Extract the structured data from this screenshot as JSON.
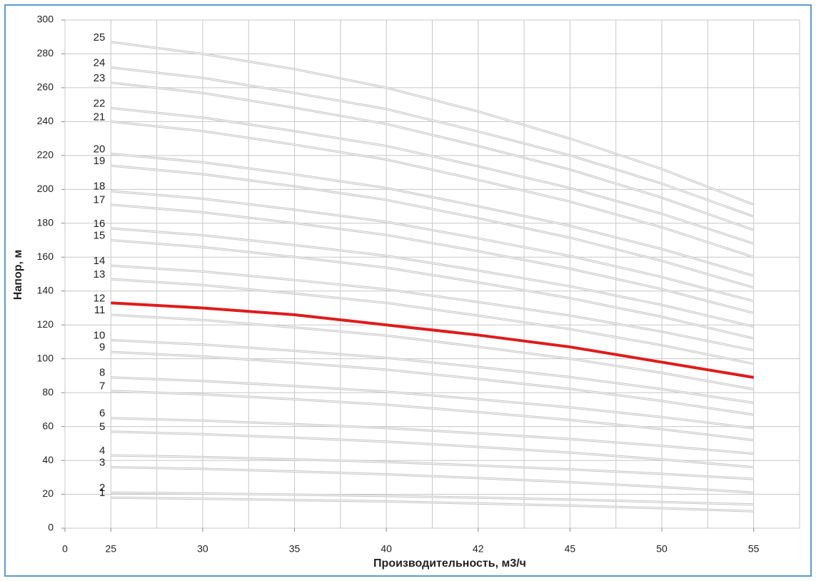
{
  "chart_data": {
    "type": "line",
    "xlabel": "Производительность, м3/ч",
    "ylabel": "Напор, м",
    "categories": [
      "0",
      "25",
      "30",
      "35",
      "40",
      "42",
      "45",
      "50",
      "55"
    ],
    "ylim": [
      0,
      300
    ],
    "yticks": [
      0,
      20,
      40,
      60,
      80,
      100,
      120,
      140,
      160,
      180,
      200,
      220,
      240,
      260,
      280,
      300
    ],
    "grid": true,
    "series": [
      {
        "name": "1",
        "color": "#c4c4c4",
        "values": [
          null,
          18,
          17.4,
          16.6,
          15.8,
          14.6,
          13.3,
          11.8,
          10
        ]
      },
      {
        "name": "2",
        "color": "#c4c4c4",
        "values": [
          null,
          21,
          20.5,
          19.8,
          19,
          18,
          16.9,
          15.5,
          14
        ]
      },
      {
        "name": "3",
        "color": "#c4c4c4",
        "values": [
          null,
          36,
          35,
          33.5,
          31.8,
          29.6,
          27.2,
          24.3,
          21
        ]
      },
      {
        "name": "4",
        "color": "#c4c4c4",
        "values": [
          null,
          43,
          42,
          40.6,
          39.1,
          37,
          34.7,
          32.1,
          29
        ]
      },
      {
        "name": "5",
        "color": "#c4c4c4",
        "values": [
          null,
          57,
          55.5,
          53.4,
          51.1,
          48,
          44.6,
          40.6,
          36
        ]
      },
      {
        "name": "6",
        "color": "#c4c4c4",
        "values": [
          null,
          65,
          63.5,
          61.4,
          59.1,
          56,
          52.6,
          48.6,
          44
        ]
      },
      {
        "name": "7",
        "color": "#c4c4c4",
        "values": [
          null,
          81,
          79,
          76.1,
          72.9,
          68.5,
          63.9,
          58.4,
          52
        ]
      },
      {
        "name": "8",
        "color": "#c4c4c4",
        "values": [
          null,
          89,
          86.9,
          83.9,
          80.6,
          76.1,
          71.3,
          65.6,
          59
        ]
      },
      {
        "name": "9",
        "color": "#c4c4c4",
        "values": [
          null,
          104,
          101.4,
          97.7,
          93.6,
          88.1,
          82.2,
          75.1,
          67
        ]
      },
      {
        "name": "10",
        "color": "#c4c4c4",
        "values": [
          null,
          111,
          108.4,
          104.7,
          100.6,
          95.1,
          89.2,
          82.1,
          74
        ]
      },
      {
        "name": "11",
        "color": "#c4c4c4",
        "values": [
          null,
          126,
          122.9,
          118.5,
          113.7,
          107.1,
          100,
          91.7,
          82
        ]
      },
      {
        "name": "12",
        "color": "#e01b1b",
        "values": [
          null,
          133,
          130,
          126,
          120,
          114,
          107,
          98,
          89
        ]
      },
      {
        "name": "13",
        "color": "#c4c4c4",
        "values": [
          null,
          147,
          143.5,
          138.5,
          133,
          125.5,
          117.5,
          108,
          97
        ]
      },
      {
        "name": "14",
        "color": "#c4c4c4",
        "values": [
          null,
          155,
          151.5,
          146.5,
          141,
          133.5,
          125.5,
          116,
          105
        ]
      },
      {
        "name": "15",
        "color": "#c4c4c4",
        "values": [
          null,
          170,
          165.9,
          160.1,
          153.8,
          145.1,
          135.8,
          124.8,
          112
        ]
      },
      {
        "name": "16",
        "color": "#c4c4c4",
        "values": [
          null,
          177,
          172.9,
          167.1,
          160.8,
          152.1,
          142.8,
          131.8,
          119
        ]
      },
      {
        "name": "17",
        "color": "#c4c4c4",
        "values": [
          null,
          191,
          186.5,
          180.1,
          173.1,
          163.5,
          153.2,
          141.1,
          127
        ]
      },
      {
        "name": "18",
        "color": "#c4c4c4",
        "values": [
          null,
          199,
          194.5,
          188,
          180.8,
          171.1,
          160.7,
          148.3,
          134
        ]
      },
      {
        "name": "19",
        "color": "#c4c4c4",
        "values": [
          null,
          214,
          209,
          201.8,
          193.8,
          183,
          171.5,
          157.8,
          142
        ]
      },
      {
        "name": "20",
        "color": "#c4c4c4",
        "values": [
          null,
          221,
          216,
          208.8,
          200.8,
          190,
          178.5,
          164.8,
          149
        ]
      },
      {
        "name": "21",
        "color": "#c4c4c4",
        "values": [
          null,
          240,
          234.4,
          226.4,
          217.6,
          205.6,
          192.8,
          177.6,
          160
        ]
      },
      {
        "name": "22",
        "color": "#c4c4c4",
        "values": [
          null,
          248,
          242.4,
          234.4,
          225.6,
          213.6,
          200.8,
          185.6,
          168
        ]
      },
      {
        "name": "23",
        "color": "#c4c4c4",
        "values": [
          null,
          263,
          256.9,
          248.2,
          238.6,
          225.6,
          211.7,
          195.1,
          176
        ]
      },
      {
        "name": "24",
        "color": "#c4c4c4",
        "values": [
          null,
          272,
          265.8,
          257,
          247.4,
          234.2,
          220.1,
          203.4,
          184
        ]
      },
      {
        "name": "25",
        "color": "#c4c4c4",
        "values": [
          null,
          287,
          280,
          271,
          260,
          246,
          230,
          212,
          191
        ]
      }
    ]
  }
}
